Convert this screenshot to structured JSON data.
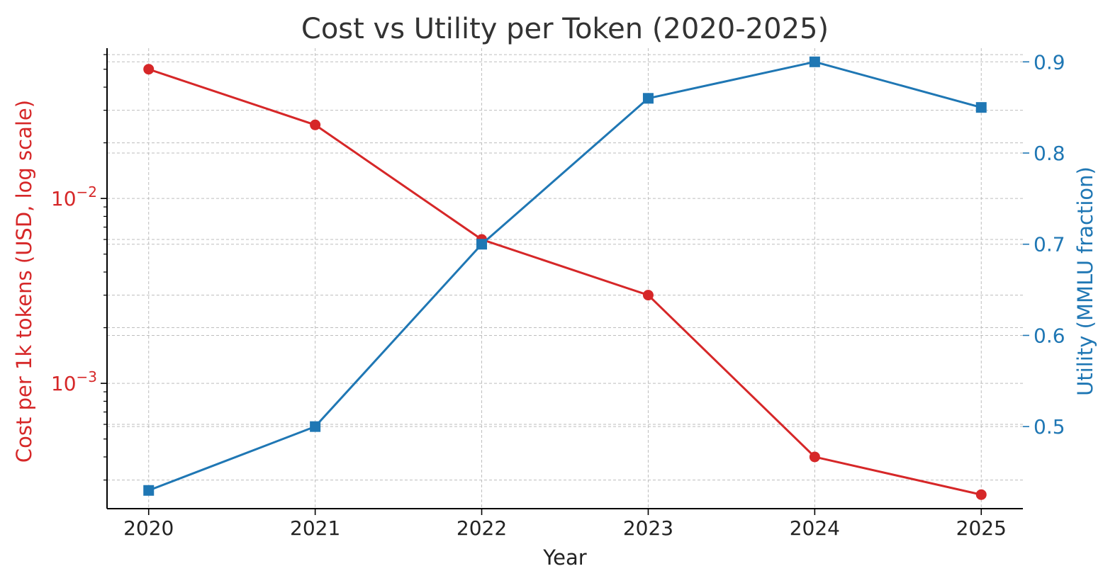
{
  "chart_data": {
    "type": "line",
    "title": "Cost vs Utility per Token (2020-2025)",
    "xlabel": "Year",
    "categories": [
      "2020",
      "2021",
      "2022",
      "2023",
      "2024",
      "2025"
    ],
    "x": [
      2020,
      2021,
      2022,
      2023,
      2024,
      2025
    ],
    "xlim": [
      2019.75,
      2025.25
    ],
    "grid": true,
    "left_axis": {
      "label": "Cost per 1k tokens (USD, log scale)",
      "scale": "log",
      "ylim": [
        0.00021,
        0.065
      ],
      "tick_labels": [
        {
          "base": "10",
          "exp": "−2",
          "value": 0.01
        },
        {
          "base": "10",
          "exp": "−3",
          "value": 0.001
        }
      ],
      "color": "#d62728"
    },
    "right_axis": {
      "label": "Utility (MMLU fraction)",
      "scale": "linear",
      "ylim": [
        0.41,
        0.915
      ],
      "ticks": [
        "0.5",
        "0.6",
        "0.7",
        "0.8",
        "0.9"
      ],
      "color": "#1f77b4"
    },
    "series": [
      {
        "name": "Cost per 1k tokens",
        "axis": "left",
        "marker": "circle",
        "color": "#d62728",
        "values": [
          0.05,
          0.025,
          0.006,
          0.003,
          0.0004,
          0.00025
        ]
      },
      {
        "name": "Utility",
        "axis": "right",
        "marker": "square",
        "color": "#1f77b4",
        "values": [
          0.43,
          0.5,
          0.7,
          0.86,
          0.9,
          0.85
        ]
      }
    ]
  }
}
